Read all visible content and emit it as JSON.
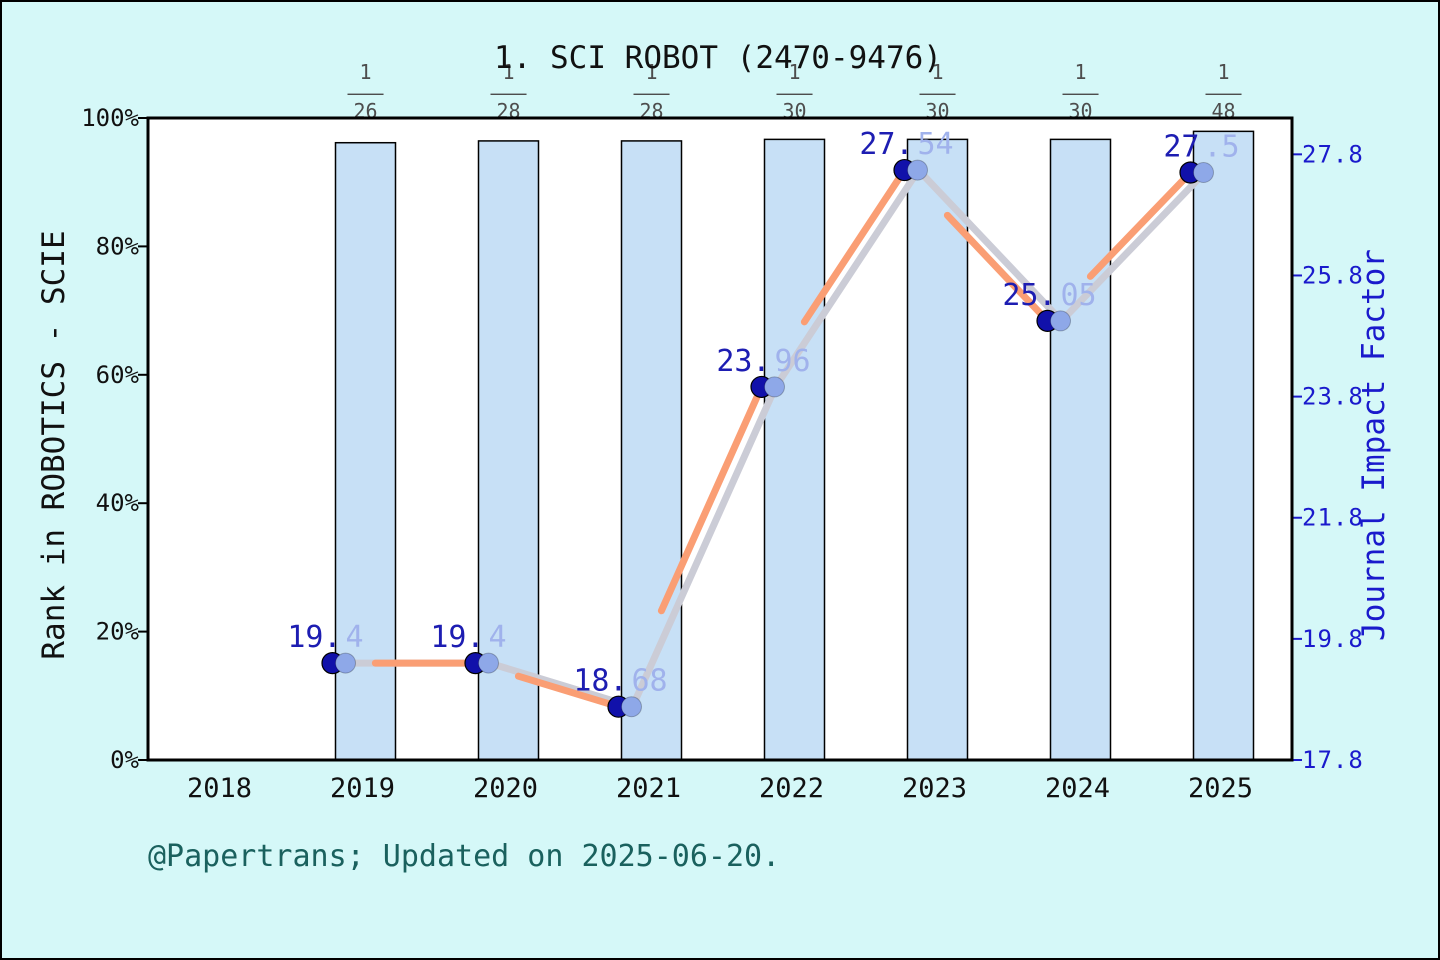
{
  "title": "1. SCI ROBOT (2470-9476)",
  "footer": "@Papertrans; Updated on 2025-06-20.",
  "colors": {
    "background": "#d5f8f8",
    "plot_bg": "#ffffff",
    "plot_border": "#000000",
    "bar_fill": "#c7e0f6",
    "bar_edge": "#000000",
    "line_orange": "#fa9e74",
    "line_ghost": "#cbccd6",
    "marker_navy": "#1111aa",
    "marker_ghost": "#8ea8e8",
    "label_dark": "#1d1db2",
    "label_light": "#a0b2ec",
    "right_axis_blue": "#1a1acc",
    "fraction_gray": "#4d4d4d",
    "footer_teal": "#1a615e",
    "axis_text": "#111111"
  },
  "chart_data": {
    "type": "bar+line",
    "title": "1. SCI ROBOT (2470-9476)",
    "categories": [
      "2018",
      "2019",
      "2020",
      "2021",
      "2022",
      "2023",
      "2024",
      "2025"
    ],
    "grid": false,
    "legend": "none",
    "bar_series": {
      "name": "Rank in ROBOTICS - SCIE",
      "axis": "left",
      "unit": "%",
      "values": [
        null,
        96.15,
        96.43,
        96.43,
        96.67,
        96.67,
        96.67,
        97.92
      ],
      "fraction_bar": "———",
      "fractions": [
        null,
        {
          "num": "1",
          "den": "26"
        },
        {
          "num": "1",
          "den": "28"
        },
        {
          "num": "1",
          "den": "28"
        },
        {
          "num": "1",
          "den": "30"
        },
        {
          "num": "1",
          "den": "30"
        },
        {
          "num": "1",
          "den": "30"
        },
        {
          "num": "1",
          "den": "48"
        }
      ]
    },
    "line_series": {
      "name": "Journal Impact Factor",
      "axis": "right",
      "values": [
        null,
        19.4,
        19.4,
        18.68,
        23.96,
        27.54,
        25.05,
        27.5
      ],
      "point_labels": [
        null,
        {
          "dark": "19.",
          "light": "4"
        },
        {
          "dark": "19.",
          "light": "4"
        },
        {
          "dark": "18.",
          "light": "68"
        },
        {
          "dark": "23.",
          "light": "96"
        },
        {
          "dark": "27.",
          "light": "54"
        },
        {
          "dark": "25.",
          "light": "05"
        },
        {
          "dark": "27",
          "light": ".5"
        }
      ]
    },
    "left_axis": {
      "label": "Rank in ROBOTICS - SCIE",
      "ticks": [
        "0%",
        "20%",
        "40%",
        "60%",
        "80%",
        "100%"
      ],
      "tick_values": [
        0,
        20,
        40,
        60,
        80,
        100
      ],
      "range": [
        0,
        100
      ]
    },
    "right_axis": {
      "label": "Journal Impact Factor",
      "ticks": [
        "17.8",
        "19.8",
        "21.8",
        "23.8",
        "25.8",
        "27.8"
      ],
      "tick_values": [
        17.8,
        19.8,
        21.8,
        23.8,
        25.8,
        27.8
      ],
      "range": [
        17.8,
        28.4
      ]
    },
    "x_axis": {
      "labels": [
        "2018",
        "2019",
        "2020",
        "2021",
        "2022",
        "2023",
        "2024",
        "2025"
      ]
    }
  }
}
